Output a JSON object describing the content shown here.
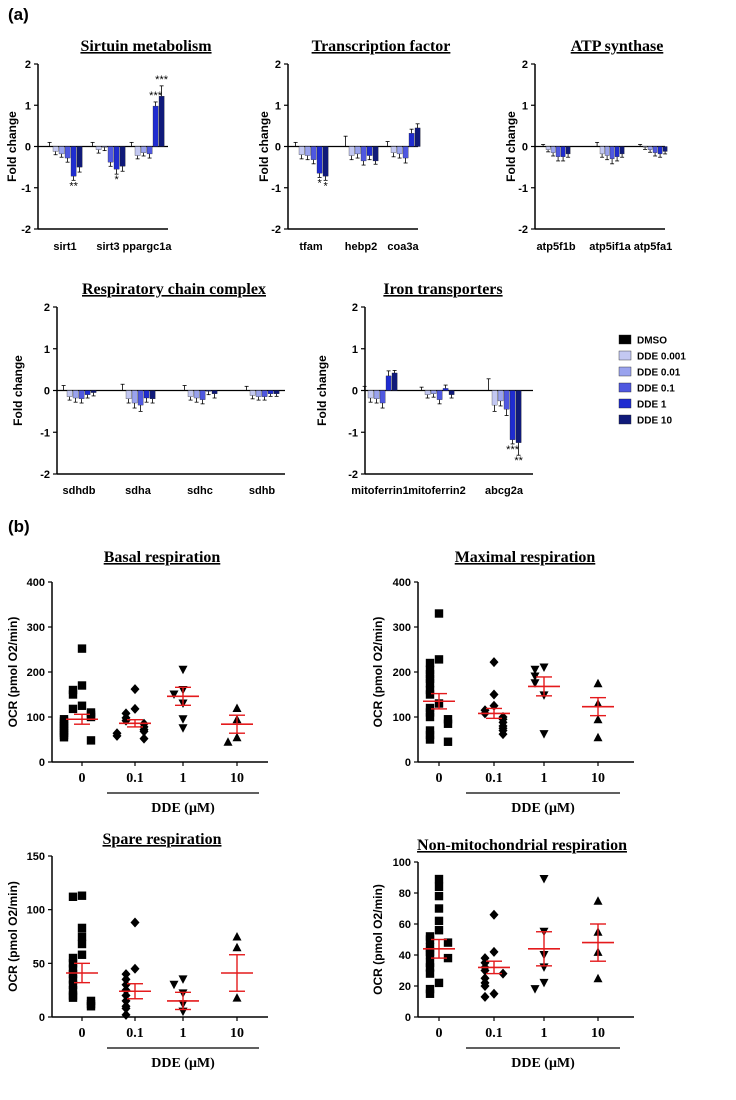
{
  "figure": {
    "panel_a_label": "(a)",
    "panel_b_label": "(b)"
  },
  "chart_data": [
    {
      "type": "bar",
      "title": "Sirtuin metabolism",
      "ylabel": "Fold change",
      "ylim": [
        -2,
        2
      ],
      "yticks": [
        "2",
        "1",
        "0",
        "-1",
        "-2"
      ],
      "categories": [
        "sirt1",
        "sirt3",
        "ppargc1a"
      ],
      "series": [
        {
          "name": "DMSO",
          "values": [
            0,
            0,
            0
          ],
          "errors": [
            0.1,
            0.1,
            0.1
          ]
        },
        {
          "name": "DDE 0.001",
          "values": [
            -0.12,
            -0.08,
            -0.22
          ],
          "errors": [
            0.08,
            0.08,
            0.08
          ]
        },
        {
          "name": "DDE 0.01",
          "values": [
            -0.18,
            -0.02,
            -0.15
          ],
          "errors": [
            0.08,
            0.08,
            0.08
          ]
        },
        {
          "name": "DDE 0.1",
          "values": [
            -0.28,
            -0.38,
            -0.18
          ],
          "errors": [
            0.1,
            0.1,
            0.1
          ]
        },
        {
          "name": "DDE 1",
          "values": [
            -0.72,
            -0.55,
            0.98
          ],
          "errors": [
            0.1,
            0.12,
            0.1
          ]
        },
        {
          "name": "DDE 10",
          "values": [
            -0.5,
            -0.48,
            1.22
          ],
          "errors": [
            0.12,
            0.12,
            0.25
          ]
        }
      ],
      "annotations": [
        {
          "category": 0,
          "series": 4,
          "text": "**",
          "pos": "below"
        },
        {
          "category": 1,
          "series": 4,
          "text": "*",
          "pos": "below"
        },
        {
          "category": 2,
          "series": 4,
          "text": "***",
          "pos": "above"
        },
        {
          "category": 2,
          "series": 5,
          "text": "***",
          "pos": "above"
        }
      ]
    },
    {
      "type": "bar",
      "title": "Transcription factor",
      "ylabel": "Fold change",
      "ylim": [
        -2,
        2
      ],
      "yticks": [
        "2",
        "1",
        "0",
        "-1",
        "-2"
      ],
      "categories": [
        "tfam",
        "hebp2",
        "coa3a"
      ],
      "series": [
        {
          "name": "DMSO",
          "values": [
            0,
            0,
            0
          ],
          "errors": [
            0.1,
            0.25,
            0.12
          ]
        },
        {
          "name": "DDE 0.001",
          "values": [
            -0.2,
            -0.22,
            -0.15
          ],
          "errors": [
            0.1,
            0.1,
            0.1
          ]
        },
        {
          "name": "DDE 0.01",
          "values": [
            -0.22,
            -0.18,
            -0.18
          ],
          "errors": [
            0.1,
            0.1,
            0.1
          ]
        },
        {
          "name": "DDE 0.1",
          "values": [
            -0.32,
            -0.35,
            -0.28
          ],
          "errors": [
            0.1,
            0.1,
            0.12
          ]
        },
        {
          "name": "DDE 1",
          "values": [
            -0.65,
            -0.22,
            0.32
          ],
          "errors": [
            0.1,
            0.1,
            0.1
          ]
        },
        {
          "name": "DDE 10",
          "values": [
            -0.72,
            -0.35,
            0.45
          ],
          "errors": [
            0.1,
            0.08,
            0.1
          ]
        }
      ],
      "annotations": [
        {
          "category": 0,
          "series": 4,
          "text": "*",
          "pos": "below"
        },
        {
          "category": 0,
          "series": 5,
          "text": "*",
          "pos": "below"
        }
      ]
    },
    {
      "type": "bar",
      "title": "ATP synthase",
      "ylabel": "Fold change",
      "ylim": [
        -2,
        2
      ],
      "yticks": [
        "2",
        "1",
        "0",
        "-1",
        "-2"
      ],
      "categories": [
        "atp5f1b",
        "atp5if1a",
        "atp5fa1"
      ],
      "series": [
        {
          "name": "DMSO",
          "values": [
            0,
            0,
            0
          ],
          "errors": [
            0.05,
            0.1,
            0.05
          ]
        },
        {
          "name": "DDE 0.001",
          "values": [
            -0.08,
            -0.18,
            -0.02
          ],
          "errors": [
            0.05,
            0.08,
            0.05
          ]
        },
        {
          "name": "DDE 0.01",
          "values": [
            -0.15,
            -0.22,
            -0.08
          ],
          "errors": [
            0.08,
            0.1,
            0.06
          ]
        },
        {
          "name": "DDE 0.1",
          "values": [
            -0.25,
            -0.3,
            -0.15
          ],
          "errors": [
            0.1,
            0.12,
            0.08
          ]
        },
        {
          "name": "DDE 1",
          "values": [
            -0.25,
            -0.25,
            -0.18
          ],
          "errors": [
            0.1,
            0.1,
            0.08
          ]
        },
        {
          "name": "DDE 10",
          "values": [
            -0.18,
            -0.18,
            -0.12
          ],
          "errors": [
            0.08,
            0.08,
            0.06
          ]
        }
      ],
      "annotations": []
    },
    {
      "type": "bar",
      "title": "Respiratory chain complex",
      "ylabel": "Fold change",
      "ylim": [
        -2,
        2
      ],
      "yticks": [
        "2",
        "1",
        "0",
        "-1",
        "-2"
      ],
      "categories": [
        "sdhdb",
        "sdha",
        "sdhc",
        "sdhb"
      ],
      "series": [
        {
          "name": "DMSO",
          "values": [
            0,
            0,
            0,
            0
          ],
          "errors": [
            0.12,
            0.15,
            0.12,
            0.1
          ]
        },
        {
          "name": "DDE 0.001",
          "values": [
            -0.15,
            -0.2,
            -0.15,
            -0.12
          ],
          "errors": [
            0.08,
            0.1,
            0.08,
            0.08
          ]
        },
        {
          "name": "DDE 0.01",
          "values": [
            -0.18,
            -0.3,
            -0.18,
            -0.15
          ],
          "errors": [
            0.1,
            0.12,
            0.1,
            0.08
          ]
        },
        {
          "name": "DDE 0.1",
          "values": [
            -0.2,
            -0.35,
            -0.22,
            -0.15
          ],
          "errors": [
            0.1,
            0.15,
            0.1,
            0.08
          ]
        },
        {
          "name": "DDE 1",
          "values": [
            -0.1,
            -0.18,
            -0.02,
            -0.08
          ],
          "errors": [
            0.08,
            0.1,
            0.08,
            0.06
          ]
        },
        {
          "name": "DDE 10",
          "values": [
            -0.05,
            -0.2,
            -0.08,
            -0.08
          ],
          "errors": [
            0.08,
            0.1,
            0.1,
            0.06
          ]
        }
      ],
      "annotations": []
    },
    {
      "type": "bar",
      "title": "Iron transporters",
      "ylabel": "Fold change",
      "ylim": [
        -2,
        2
      ],
      "yticks": [
        "2",
        "1",
        "0",
        "-1",
        "-2"
      ],
      "categories": [
        "mitoferrin1",
        "mitoferrin2",
        "abcg2a"
      ],
      "series": [
        {
          "name": "DMSO",
          "values": [
            0,
            0,
            0
          ],
          "errors": [
            0.1,
            0.08,
            0.28
          ]
        },
        {
          "name": "DDE 0.001",
          "values": [
            -0.18,
            -0.1,
            -0.35
          ],
          "errors": [
            0.1,
            0.08,
            0.15
          ]
        },
        {
          "name": "DDE 0.01",
          "values": [
            -0.2,
            -0.08,
            -0.25
          ],
          "errors": [
            0.1,
            0.08,
            0.12
          ]
        },
        {
          "name": "DDE 0.1",
          "values": [
            -0.3,
            -0.22,
            -0.45
          ],
          "errors": [
            0.12,
            0.1,
            0.15
          ]
        },
        {
          "name": "DDE 1",
          "values": [
            0.35,
            0.05,
            -1.18
          ],
          "errors": [
            0.12,
            0.08,
            0.1
          ]
        },
        {
          "name": "DDE 10",
          "values": [
            0.42,
            -0.1,
            -1.25
          ],
          "errors": [
            0.06,
            0.08,
            0.3
          ]
        }
      ],
      "annotations": [
        {
          "category": 2,
          "series": 4,
          "text": "***",
          "pos": "below"
        },
        {
          "category": 2,
          "series": 5,
          "text": "**",
          "pos": "below"
        }
      ]
    },
    {
      "type": "scatter",
      "title": "Basal respiration",
      "ylabel": "OCR (pmol O2/min)",
      "ylim": [
        0,
        400
      ],
      "yticks": [
        "400",
        "300",
        "200",
        "100",
        "0"
      ],
      "categories": [
        "0",
        "0.1",
        "1",
        "10"
      ],
      "xlabel": "DDE (μM)",
      "markers": [
        "square",
        "diamond",
        "triangle-down",
        "triangle-up"
      ],
      "points": [
        [
          252,
          170,
          160,
          150,
          125,
          118,
          110,
          105,
          100,
          95,
          90,
          85,
          80,
          75,
          70,
          65,
          60,
          55,
          48
        ],
        [
          162,
          118,
          108,
          98,
          92,
          85,
          78,
          72,
          68,
          64,
          58,
          52
        ],
        [
          205,
          160,
          150,
          130,
          95,
          75
        ],
        [
          120,
          95,
          55,
          45
        ]
      ],
      "means": [
        95,
        86,
        146,
        84
      ],
      "sems": [
        11,
        8,
        20,
        20
      ]
    },
    {
      "type": "scatter",
      "title": "Maximal respiration",
      "ylabel": "OCR (pmol O2/min)",
      "ylim": [
        0,
        400
      ],
      "yticks": [
        "400",
        "300",
        "200",
        "100",
        "0"
      ],
      "categories": [
        "0",
        "0.1",
        "1",
        "10"
      ],
      "xlabel": "DDE (μM)",
      "markers": [
        "square",
        "diamond",
        "triangle-down",
        "triangle-up"
      ],
      "points": [
        [
          330,
          228,
          220,
          205,
          195,
          185,
          175,
          160,
          150,
          130,
          120,
          110,
          100,
          95,
          85,
          70,
          60,
          50,
          45
        ],
        [
          222,
          150,
          125,
          115,
          108,
          100,
          95,
          88,
          80,
          75,
          70,
          62
        ],
        [
          210,
          205,
          190,
          175,
          148,
          62
        ],
        [
          175,
          130,
          95,
          55
        ]
      ],
      "means": [
        135,
        108,
        168,
        123
      ],
      "sems": [
        17,
        11,
        21,
        20
      ]
    },
    {
      "type": "scatter",
      "title": "Spare respiration",
      "ylabel": "OCR (pmol O2/min)",
      "ylim": [
        0,
        150
      ],
      "yticks": [
        "150",
        "100",
        "50",
        "0"
      ],
      "categories": [
        "0",
        "0.1",
        "1",
        "10"
      ],
      "xlabel": "DDE (μM)",
      "markers": [
        "square",
        "diamond",
        "triangle-down",
        "triangle-up"
      ],
      "points": [
        [
          113,
          112,
          83,
          75,
          68,
          58,
          55,
          50,
          45,
          40,
          35,
          30,
          25,
          20,
          18,
          15,
          12,
          10
        ],
        [
          88,
          45,
          40,
          35,
          30,
          25,
          20,
          15,
          10,
          8,
          2
        ],
        [
          35,
          30,
          22,
          12,
          5
        ],
        [
          75,
          65,
          18
        ]
      ],
      "means": [
        41,
        24,
        15,
        41
      ],
      "sems": [
        9,
        7,
        8,
        17
      ]
    },
    {
      "type": "scatter",
      "title": "Non-mitochondrial respiration",
      "ylabel": "OCR (pmol O2/min)",
      "ylim": [
        0,
        100
      ],
      "yticks": [
        "100",
        "80",
        "60",
        "40",
        "20",
        "0"
      ],
      "categories": [
        "0",
        "0.1",
        "1",
        "10"
      ],
      "xlabel": "DDE (μM)",
      "markers": [
        "square",
        "diamond",
        "triangle-down",
        "triangle-up"
      ],
      "points": [
        [
          89,
          84,
          78,
          70,
          62,
          56,
          52,
          50,
          48,
          45,
          42,
          40,
          38,
          35,
          32,
          28,
          22,
          18,
          15
        ],
        [
          66,
          42,
          38,
          35,
          32,
          30,
          28,
          25,
          22,
          20,
          15,
          13
        ],
        [
          89,
          55,
          40,
          32,
          22,
          18
        ],
        [
          75,
          55,
          42,
          25
        ]
      ],
      "means": [
        44,
        32,
        44,
        48
      ],
      "sems": [
        6,
        4,
        11,
        12
      ]
    }
  ],
  "legend": {
    "items": [
      "DMSO",
      "DDE 0.001",
      "DDE 0.01",
      "DDE 0.1",
      "DDE 1",
      "DDE 10"
    ],
    "colors": [
      "#000000",
      "#c3c8f2",
      "#9aa3ee",
      "#4f58e0",
      "#1f2cd0",
      "#101a7a"
    ]
  },
  "colors": {
    "mean_line": "#e41a1c",
    "points": "#000000"
  }
}
